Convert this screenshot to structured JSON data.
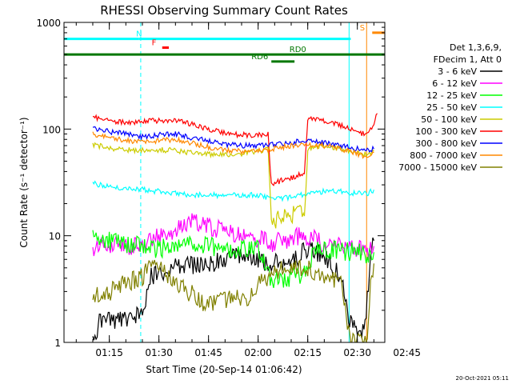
{
  "chart_data": {
    "type": "line",
    "title": "RHESSI Observing Summary Count Rates",
    "xlabel": "Start Time (20-Sep-14 01:06:42)",
    "ylabel": "Count Rate (s⁻¹ detector⁻¹)",
    "y_scale": "log",
    "ylim": [
      1,
      1000
    ],
    "y_ticks": [
      {
        "value": 1,
        "label": "1"
      },
      {
        "value": 10,
        "label": "10"
      },
      {
        "value": 100,
        "label": "100"
      },
      {
        "value": 1000,
        "label": "1000"
      }
    ],
    "x_range_minutes": [
      1.3,
      98.3
    ],
    "x_ticks": [
      {
        "label": "01:15",
        "minutes": 15
      },
      {
        "label": "01:30",
        "minutes": 30
      },
      {
        "label": "01:45",
        "minutes": 45
      },
      {
        "label": "02:00",
        "minutes": 60
      },
      {
        "label": "02:15",
        "minutes": 75
      },
      {
        "label": "02:30",
        "minutes": 90
      },
      {
        "label": "02:45",
        "minutes": 105
      }
    ],
    "legend_header": [
      "Det 1,3,6,9,",
      "FDecim 1, Att 0"
    ],
    "series": [
      {
        "name": "3 - 6 keV",
        "color": "#000000",
        "points": [
          [
            10,
            1.0
          ],
          [
            12,
            1.5
          ],
          [
            15,
            1.6
          ],
          [
            20,
            1.7
          ],
          [
            25,
            1.8
          ],
          [
            27,
            4.0
          ],
          [
            35,
            5.0
          ],
          [
            45,
            5.5
          ],
          [
            55,
            6.5
          ],
          [
            60,
            6.0
          ],
          [
            64,
            5.5
          ],
          [
            70,
            5.8
          ],
          [
            75,
            7.5
          ],
          [
            80,
            6.5
          ],
          [
            85,
            4.0
          ],
          [
            88,
            1.5
          ],
          [
            92,
            1.2
          ],
          [
            94,
            6.0
          ],
          [
            95,
            9.0
          ]
        ]
      },
      {
        "name": "6 - 12 keV",
        "color": "#ff00ff",
        "points": [
          [
            10,
            7.5
          ],
          [
            15,
            8.0
          ],
          [
            20,
            8.0
          ],
          [
            25,
            8.0
          ],
          [
            30,
            10.0
          ],
          [
            35,
            11.0
          ],
          [
            40,
            14.0
          ],
          [
            45,
            12.0
          ],
          [
            50,
            11.0
          ],
          [
            55,
            10.0
          ],
          [
            60,
            9.5
          ],
          [
            64,
            8.5
          ],
          [
            68,
            9.0
          ],
          [
            72,
            10.0
          ],
          [
            76,
            9.5
          ],
          [
            80,
            8.5
          ],
          [
            85,
            8.0
          ],
          [
            90,
            7.5
          ],
          [
            93,
            7.2
          ],
          [
            95,
            8.0
          ]
        ]
      },
      {
        "name": "12 - 25 keV",
        "color": "#00ff00",
        "points": [
          [
            10,
            9.5
          ],
          [
            15,
            9.0
          ],
          [
            20,
            8.5
          ],
          [
            25,
            8.0
          ],
          [
            30,
            7.5
          ],
          [
            35,
            8.0
          ],
          [
            40,
            8.5
          ],
          [
            45,
            8.0
          ],
          [
            50,
            7.5
          ],
          [
            55,
            7.5
          ],
          [
            60,
            7.5
          ],
          [
            64,
            3.8
          ],
          [
            70,
            4.0
          ],
          [
            75,
            4.5
          ],
          [
            77,
            7.5
          ],
          [
            80,
            7.5
          ],
          [
            85,
            7.2
          ],
          [
            90,
            7.0
          ],
          [
            93,
            6.5
          ],
          [
            95,
            7.0
          ]
        ]
      },
      {
        "name": "25 - 50 keV",
        "color": "#00ffff",
        "points": [
          [
            10,
            31
          ],
          [
            15,
            29
          ],
          [
            20,
            28
          ],
          [
            25,
            27
          ],
          [
            30,
            26
          ],
          [
            35,
            25
          ],
          [
            40,
            24
          ],
          [
            45,
            24
          ],
          [
            50,
            24
          ],
          [
            55,
            24
          ],
          [
            60,
            24
          ],
          [
            64,
            22
          ],
          [
            70,
            23
          ],
          [
            75,
            25
          ],
          [
            80,
            26
          ],
          [
            85,
            26
          ],
          [
            90,
            25
          ],
          [
            93,
            25
          ],
          [
            95,
            27
          ]
        ]
      },
      {
        "name": "50 - 100 keV",
        "color": "#cccc00",
        "points": [
          [
            10,
            72
          ],
          [
            15,
            66
          ],
          [
            20,
            64
          ],
          [
            25,
            63
          ],
          [
            30,
            64
          ],
          [
            35,
            63
          ],
          [
            40,
            60
          ],
          [
            45,
            58
          ],
          [
            50,
            58
          ],
          [
            55,
            59
          ],
          [
            60,
            62
          ],
          [
            63,
            65
          ],
          [
            64,
            14
          ],
          [
            67,
            15
          ],
          [
            70,
            16
          ],
          [
            72,
            17
          ],
          [
            74,
            17
          ],
          [
            75,
            65
          ],
          [
            80,
            70
          ],
          [
            85,
            65
          ],
          [
            90,
            60
          ],
          [
            92,
            58
          ],
          [
            95,
            62
          ]
        ]
      },
      {
        "name": "100 - 300 keV",
        "color": "#ff0000",
        "points": [
          [
            10,
            130
          ],
          [
            15,
            120
          ],
          [
            20,
            115
          ],
          [
            25,
            118
          ],
          [
            30,
            120
          ],
          [
            35,
            120
          ],
          [
            40,
            112
          ],
          [
            45,
            100
          ],
          [
            50,
            92
          ],
          [
            55,
            88
          ],
          [
            60,
            88
          ],
          [
            63,
            92
          ],
          [
            64,
            30
          ],
          [
            67,
            33
          ],
          [
            70,
            35
          ],
          [
            73,
            38
          ],
          [
            74,
            38
          ],
          [
            75,
            125
          ],
          [
            80,
            118
          ],
          [
            85,
            108
          ],
          [
            90,
            95
          ],
          [
            92,
            90
          ],
          [
            95,
            110
          ],
          [
            96,
            140
          ]
        ]
      },
      {
        "name": "300 - 800 keV",
        "color": "#0000ff",
        "points": [
          [
            10,
            100
          ],
          [
            15,
            95
          ],
          [
            20,
            90
          ],
          [
            25,
            85
          ],
          [
            30,
            88
          ],
          [
            35,
            90
          ],
          [
            40,
            83
          ],
          [
            45,
            77
          ],
          [
            50,
            72
          ],
          [
            55,
            70
          ],
          [
            60,
            70
          ],
          [
            63,
            72
          ],
          [
            65,
            72
          ],
          [
            70,
            75
          ],
          [
            75,
            78
          ],
          [
            80,
            75
          ],
          [
            85,
            70
          ],
          [
            90,
            65
          ],
          [
            92,
            62
          ],
          [
            95,
            65
          ]
        ]
      },
      {
        "name": "800 - 7000 keV",
        "color": "#ff8800",
        "points": [
          [
            10,
            90
          ],
          [
            15,
            82
          ],
          [
            20,
            78
          ],
          [
            25,
            76
          ],
          [
            30,
            78
          ],
          [
            35,
            80
          ],
          [
            40,
            74
          ],
          [
            45,
            68
          ],
          [
            50,
            64
          ],
          [
            55,
            62
          ],
          [
            60,
            62
          ],
          [
            63,
            64
          ],
          [
            65,
            66
          ],
          [
            70,
            70
          ],
          [
            75,
            72
          ],
          [
            80,
            70
          ],
          [
            85,
            65
          ],
          [
            90,
            58
          ],
          [
            92,
            56
          ],
          [
            95,
            60
          ]
        ]
      },
      {
        "name": "7000 - 15000 keV",
        "color": "#808000",
        "points": [
          [
            10,
            2.8
          ],
          [
            15,
            2.9
          ],
          [
            20,
            3.6
          ],
          [
            25,
            4.2
          ],
          [
            27,
            5.0
          ],
          [
            30,
            5.0
          ],
          [
            35,
            3.8
          ],
          [
            40,
            2.8
          ],
          [
            45,
            2.2
          ],
          [
            50,
            2.5
          ],
          [
            55,
            2.6
          ],
          [
            58,
            2.8
          ],
          [
            60,
            3.5
          ],
          [
            64,
            4.5
          ],
          [
            70,
            5.2
          ],
          [
            75,
            5.0
          ],
          [
            80,
            4.2
          ],
          [
            85,
            3.5
          ],
          [
            88,
            1.0
          ],
          [
            93,
            1.0
          ],
          [
            94,
            4.0
          ],
          [
            95,
            5.5
          ]
        ]
      }
    ],
    "flags": [
      {
        "label": "N",
        "color": "#00ffff",
        "y": 700,
        "segments": [
          [
            1.3,
            24
          ],
          [
            24,
            88
          ]
        ],
        "label_at": 24
      },
      {
        "label": "F",
        "color": "#ff0000",
        "y": 580,
        "segments": [
          [
            31,
            33
          ]
        ],
        "label_at": 28.5
      },
      {
        "label": "S",
        "color": "#ff8800",
        "y": 800,
        "segments": [
          [
            94.5,
            102
          ]
        ],
        "label_at": 91.5
      },
      {
        "label": "RD0",
        "color": "#007700",
        "y": 500,
        "segments": [
          [
            1.3,
            103
          ]
        ],
        "label_at": 72
      },
      {
        "label": "RD6",
        "color": "#007700",
        "y": 430,
        "segments": [
          [
            64,
            71
          ]
        ],
        "label_at": 60.5
      }
    ],
    "vlines": [
      {
        "minutes": 1.3,
        "style": "solid",
        "color": "#00ffff"
      },
      {
        "minutes": 24.5,
        "style": "dashed",
        "color": "#00ffff"
      },
      {
        "minutes": 87.5,
        "style": "solid",
        "color": "#00ffff"
      },
      {
        "minutes": 92.8,
        "style": "solid",
        "color": "#ff8800"
      },
      {
        "minutes": 100.5,
        "style": "dashed",
        "color": "#ff8800"
      },
      {
        "minutes": 102.2,
        "style": "dashed",
        "color": "#ff8800"
      }
    ],
    "footer": "20-Oct-2021 05:11"
  }
}
